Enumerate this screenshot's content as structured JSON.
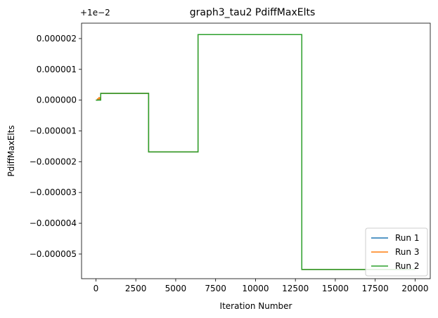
{
  "chart_data": {
    "type": "line",
    "title": "graph3_tau2 PdiffMaxElts",
    "xlabel": "Iteration Number",
    "ylabel": "PdiffMaxElts",
    "offset_label": "+1e−2",
    "xlim": [
      -900,
      20950
    ],
    "ylim": [
      -5.8e-06,
      2.5e-06
    ],
    "xticks": [
      0,
      2500,
      5000,
      7500,
      10000,
      12500,
      15000,
      17500,
      20000
    ],
    "xtick_labels": [
      "0",
      "2500",
      "5000",
      "7500",
      "10000",
      "12500",
      "15000",
      "17500",
      "20000"
    ],
    "yticks": [
      2e-06,
      1e-06,
      0.0,
      -1e-06,
      -2e-06,
      -3e-06,
      -4e-06,
      -5e-06
    ],
    "ytick_labels": [
      "0.000002",
      "0.000001",
      "0.000000",
      "−0.000001",
      "−0.000002",
      "−0.000003",
      "−0.000004",
      "−0.000005"
    ],
    "grid": false,
    "legend_position": "lower-right",
    "series": [
      {
        "name": "Run 1",
        "color": "#1f77b4",
        "x": [
          0,
          100,
          100,
          200,
          200,
          300,
          300,
          3300,
          3300,
          6400,
          6400,
          12900,
          12900,
          20000
        ],
        "y": [
          0.0,
          0.0,
          3e-08,
          3e-08,
          1e-08,
          1e-08,
          2.2e-07,
          2.2e-07,
          -1.68e-06,
          -1.68e-06,
          2.13e-06,
          2.13e-06,
          -5.5e-06,
          -5.5e-06
        ]
      },
      {
        "name": "Run 3",
        "color": "#ff7f0e",
        "x": [
          0,
          100,
          100,
          180,
          180,
          250,
          250,
          300,
          300,
          3300,
          3300,
          6400,
          6400,
          12900,
          12900,
          20000
        ],
        "y": [
          0.0,
          0.0,
          4e-08,
          4e-08,
          8e-08,
          8e-08,
          2e-08,
          2e-08,
          2.2e-07,
          2.2e-07,
          -1.68e-06,
          -1.68e-06,
          2.13e-06,
          2.13e-06,
          -5.5e-06,
          -5.5e-06
        ]
      },
      {
        "name": "Run 2",
        "color": "#2ca02c",
        "x": [
          0,
          100,
          100,
          300,
          300,
          3300,
          3300,
          6400,
          6400,
          12900,
          12900,
          20000
        ],
        "y": [
          0.0,
          0.0,
          0.0,
          0.0,
          2.2e-07,
          2.2e-07,
          -1.68e-06,
          -1.68e-06,
          2.13e-06,
          2.13e-06,
          -5.5e-06,
          -5.5e-06
        ]
      }
    ]
  }
}
